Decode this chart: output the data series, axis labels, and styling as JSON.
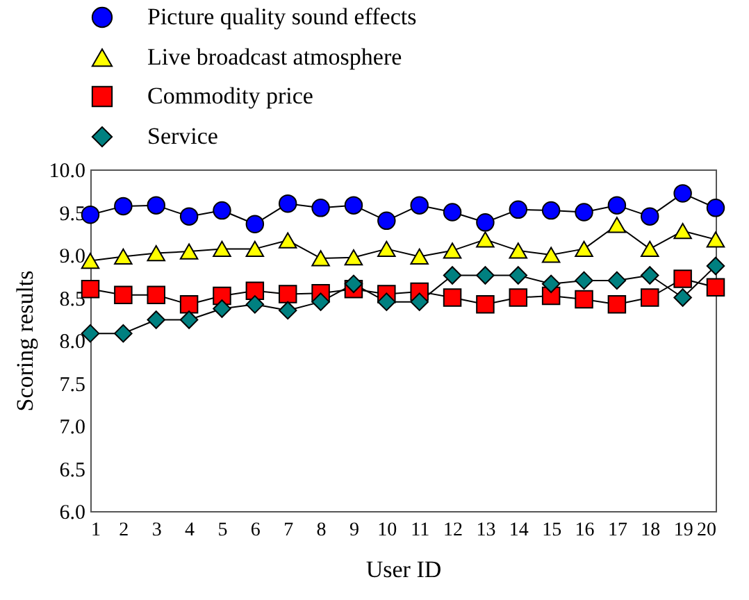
{
  "chart_data": {
    "type": "line",
    "xlabel": "User ID",
    "ylabel": "Scoring results",
    "x": [
      1,
      2,
      3,
      4,
      5,
      6,
      7,
      8,
      9,
      10,
      11,
      12,
      13,
      14,
      15,
      16,
      17,
      18,
      19,
      20
    ],
    "xlim": [
      1,
      20
    ],
    "xticks": [
      1,
      2,
      3,
      4,
      5,
      6,
      7,
      8,
      9,
      10,
      11,
      12,
      13,
      14,
      15,
      16,
      17,
      18,
      19,
      20
    ],
    "ylim": [
      6.0,
      10.0
    ],
    "yticks": [
      {
        "value": 6,
        "label": "6.0"
      },
      {
        "value": 6.5,
        "label": "6.5"
      },
      {
        "value": 7,
        "label": "7.0"
      },
      {
        "value": 7.5,
        "label": "7.5"
      },
      {
        "value": 8,
        "label": "8.0"
      },
      {
        "value": 8.5,
        "label": "8.5"
      },
      {
        "value": 9,
        "label": "9.0"
      },
      {
        "value": 9.5,
        "label": "9.5"
      },
      {
        "value": 10,
        "label": "10.0"
      }
    ],
    "grid": false,
    "legend": "top",
    "line_style": "solid",
    "series": [
      {
        "name": "Picture quality sound effects",
        "color": "#0000ff",
        "marker": "circle",
        "values": [
          9.47,
          9.57,
          9.58,
          9.45,
          9.52,
          9.36,
          9.6,
          9.55,
          9.58,
          9.4,
          9.58,
          9.5,
          9.38,
          9.53,
          9.52,
          9.5,
          9.58,
          9.45,
          9.72,
          9.55
        ]
      },
      {
        "name": "Live broadcast atmosphere",
        "color": "#ffff00",
        "marker": "triangle",
        "values": [
          8.93,
          8.98,
          9.02,
          9.04,
          9.07,
          9.07,
          9.17,
          8.96,
          8.97,
          9.07,
          8.98,
          9.05,
          9.18,
          9.05,
          9.0,
          9.07,
          9.35,
          9.07,
          9.28,
          9.18
        ]
      },
      {
        "name": "Commodity price",
        "color": "#ff0000",
        "marker": "square",
        "values": [
          8.6,
          8.53,
          8.53,
          8.42,
          8.52,
          8.58,
          8.54,
          8.55,
          8.6,
          8.54,
          8.57,
          8.5,
          8.42,
          8.5,
          8.52,
          8.48,
          8.42,
          8.5,
          8.72,
          8.62
        ]
      },
      {
        "name": "Service",
        "color": "#008080",
        "marker": "diamond",
        "values": [
          8.08,
          8.08,
          8.24,
          8.24,
          8.37,
          8.42,
          8.35,
          8.45,
          8.66,
          8.45,
          8.45,
          8.76,
          8.76,
          8.76,
          8.66,
          8.7,
          8.7,
          8.76,
          8.5,
          8.87
        ]
      }
    ]
  }
}
